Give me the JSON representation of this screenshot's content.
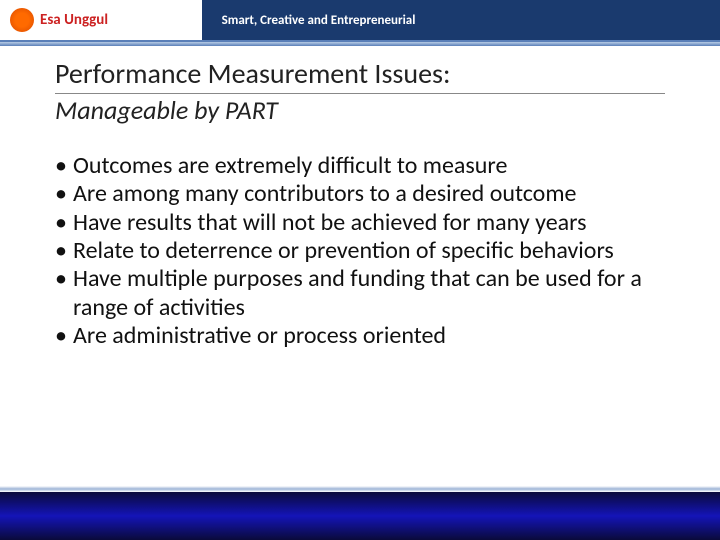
{
  "header": {
    "logo_text": "Esa Unggul",
    "tagline": "Smart, Creative and Entrepreneurial"
  },
  "title": "Performance Measurement Issues:",
  "subtitle": "Manageable by PART",
  "bullets": [
    "Outcomes are extremely difficult to measure",
    "Are among many contributors to a desired outcome",
    "Have results that will not be achieved for many years",
    "Relate to deterrence or prevention of specific behaviors",
    "Have multiple purposes and funding that can be used for a range of activities",
    "Are administrative or process oriented"
  ],
  "colors": {
    "header_blue": "#1a3a6e",
    "footer_blue": "#1414b8",
    "logo_orange": "#ff6a00",
    "text": "#111111"
  }
}
